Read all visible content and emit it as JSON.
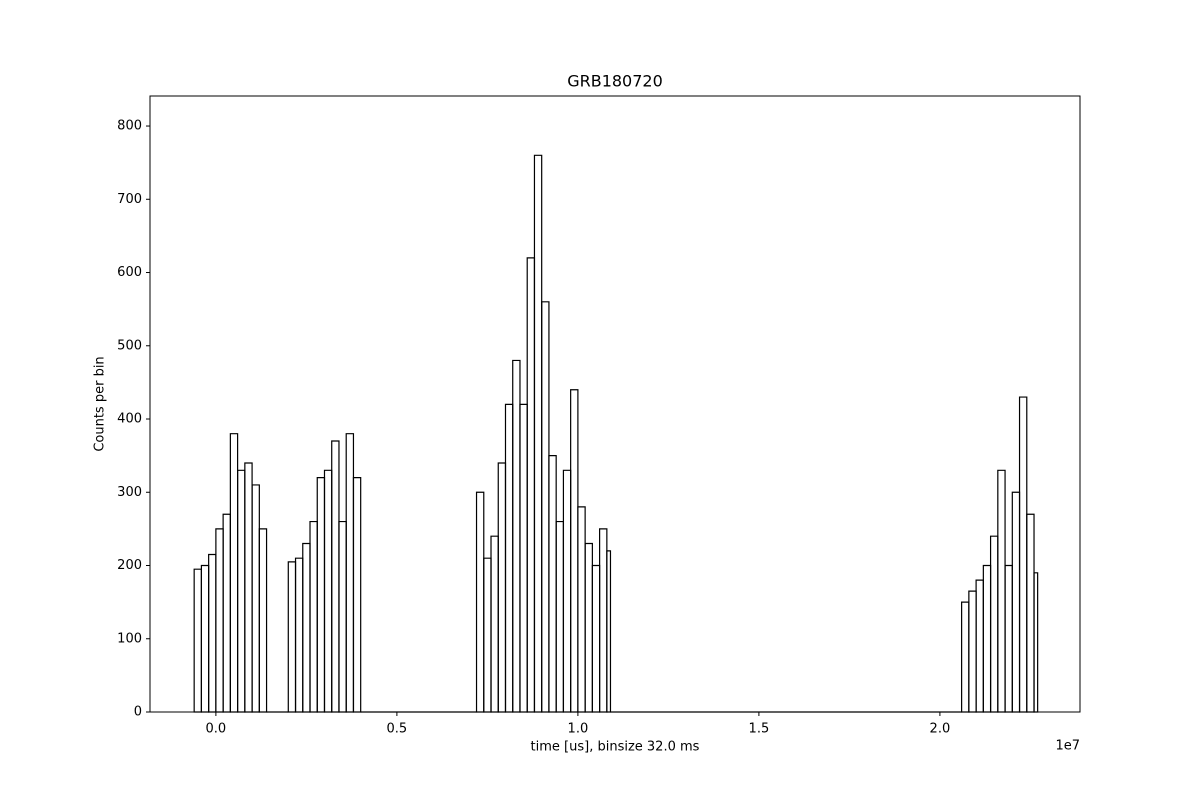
{
  "chart_data": {
    "type": "histogram",
    "title": "GRB180720",
    "xlabel": "time [us], binsize 32.0 ms",
    "ylabel": "Counts per bin",
    "x_offset_label": "1e7",
    "color": "#000000",
    "bins": [
      -600000,
      -400000,
      -200000,
      0,
      200000,
      400000,
      600000,
      800000,
      1000000,
      1200000,
      1400000,
      2000000,
      2200000,
      2400000,
      2600000,
      2800000,
      3000000,
      3200000,
      3400000,
      3600000,
      3800000,
      4000000,
      7200000,
      7400000,
      7600000,
      7800000,
      8000000,
      8200000,
      8400000,
      8600000,
      8800000,
      9000000,
      9200000,
      9400000,
      9600000,
      9800000,
      10000000,
      10200000,
      10400000,
      10600000,
      10800000,
      10900000,
      20600000,
      20800000,
      21000000,
      21200000,
      21400000,
      21600000,
      21800000,
      22000000,
      22200000,
      22400000,
      22600000,
      22700000
    ],
    "counts": [
      195,
      200,
      215,
      250,
      270,
      380,
      330,
      340,
      310,
      250,
      0,
      205,
      210,
      230,
      260,
      320,
      330,
      370,
      260,
      380,
      320,
      0,
      300,
      210,
      240,
      340,
      420,
      480,
      420,
      620,
      760,
      560,
      350,
      260,
      330,
      440,
      280,
      230,
      200,
      250,
      220,
      0,
      150,
      165,
      180,
      200,
      240,
      330,
      200,
      300,
      430,
      270,
      190
    ],
    "xlim": [
      -1820000,
      23870000
    ],
    "ylim": [
      0,
      841
    ],
    "xticks": [
      {
        "value": 0,
        "label": "0.0"
      },
      {
        "value": 5000000,
        "label": "0.5"
      },
      {
        "value": 10000000,
        "label": "1.0"
      },
      {
        "value": 15000000,
        "label": "1.5"
      },
      {
        "value": 20000000,
        "label": "2.0"
      }
    ],
    "yticks": [
      0,
      100,
      200,
      300,
      400,
      500,
      600,
      700,
      800
    ]
  }
}
